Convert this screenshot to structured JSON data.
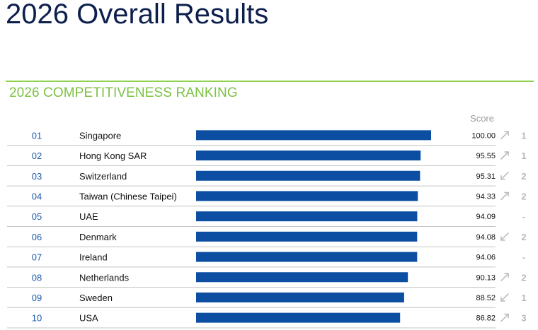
{
  "page": {
    "title": "2026 Overall Results"
  },
  "section": {
    "title": "2026 COMPETITIVENESS RANKING",
    "score_header": "Score"
  },
  "colors": {
    "title": "#0d1f4c",
    "accent_green": "#7cc242",
    "bar": "#0b4ea2",
    "rank_number": "#1e5aa8",
    "muted": "#b8b8b8",
    "divider": "#c4c4c4"
  },
  "chart_data": {
    "type": "bar",
    "orientation": "horizontal",
    "title": "2026 COMPETITIVENESS RANKING",
    "value_label": "Score",
    "xlim": [
      0,
      100
    ],
    "ranks": [
      "01",
      "02",
      "03",
      "04",
      "05",
      "06",
      "07",
      "08",
      "09",
      "10"
    ],
    "categories": [
      "Singapore",
      "Hong Kong SAR",
      "Switzerland",
      "Taiwan (Chinese Taipei)",
      "UAE",
      "Denmark",
      "Ireland",
      "Netherlands",
      "Sweden",
      "USA"
    ],
    "values": [
      100.0,
      95.55,
      95.31,
      94.33,
      94.09,
      94.08,
      94.06,
      90.13,
      88.52,
      86.82
    ],
    "value_labels": [
      "100.00",
      "95.55",
      "95.31",
      "94.33",
      "94.09",
      "94.08",
      "94.06",
      "90.13",
      "88.52",
      "86.82"
    ],
    "change_direction": [
      "up",
      "up",
      "down",
      "up",
      "none",
      "down",
      "none",
      "up",
      "down",
      "up"
    ],
    "change_icon": [
      "arrow-up-right-icon",
      "arrow-up-right-icon",
      "arrow-down-left-icon",
      "arrow-up-right-icon",
      "no-change-dash",
      "arrow-down-left-icon",
      "no-change-dash",
      "arrow-up-right-icon",
      "arrow-down-left-icon",
      "arrow-up-right-icon"
    ],
    "change_values": [
      "1",
      "1",
      "2",
      "2",
      "-",
      "2",
      "-",
      "2",
      "1",
      "3"
    ]
  }
}
